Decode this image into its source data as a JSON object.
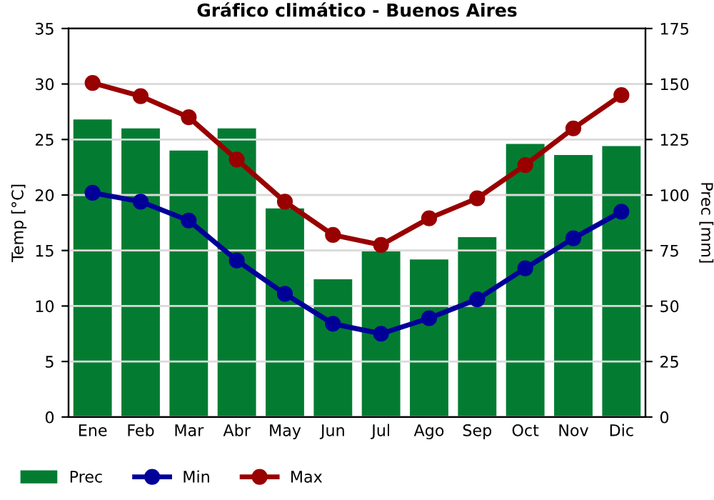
{
  "chart_data": {
    "type": "line",
    "title": "Gráfico climático - Buenos Aires",
    "ylabel": "Temp [°C]",
    "y2label": "Prec [mm]",
    "categories": [
      "Ene",
      "Feb",
      "Mar",
      "Abr",
      "May",
      "Jun",
      "Jul",
      "Ago",
      "Sep",
      "Oct",
      "Nov",
      "Dic"
    ],
    "series": [
      {
        "name": "Prec",
        "type": "bar",
        "axis": "y2",
        "color": "#037c32",
        "values": [
          134,
          130,
          120,
          130,
          94,
          62,
          75,
          71,
          81,
          123,
          118,
          122
        ]
      },
      {
        "name": "Min",
        "color": "#000099",
        "values": [
          20.2,
          19.4,
          17.7,
          14.1,
          11.1,
          8.4,
          7.5,
          8.9,
          10.6,
          13.4,
          16.1,
          18.5
        ]
      },
      {
        "name": "Max",
        "color": "#990000",
        "values": [
          30.1,
          28.9,
          27.0,
          23.2,
          19.4,
          16.4,
          15.5,
          17.9,
          19.7,
          22.7,
          26.0,
          29.0
        ]
      }
    ],
    "ylim": [
      0,
      35
    ],
    "yticks": [
      0,
      5,
      10,
      15,
      20,
      25,
      30,
      35
    ],
    "y2lim": [
      0,
      175
    ],
    "y2ticks": [
      0,
      25,
      50,
      75,
      100,
      125,
      150,
      175
    ],
    "grid": true,
    "legend": "bottom",
    "marker": "circle",
    "line_style": "solid"
  }
}
